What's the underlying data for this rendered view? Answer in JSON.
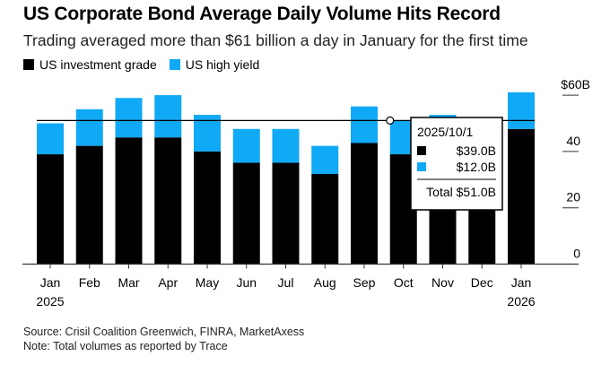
{
  "title": "US Corporate Bond Average Daily Volume Hits Record",
  "subtitle": "Trading averaged more than $61 billion a day in January for the first time",
  "source": "Source: Crisil Coalition Greenwich, FINRA, MarketAxess",
  "note": "Note: Total volumes as reported by Trace",
  "colors": {
    "investment_grade": "#000000",
    "high_yield": "#10a9f5"
  },
  "chart_data": {
    "type": "bar",
    "stacked": true,
    "categories": [
      "Jan",
      "Feb",
      "Mar",
      "Apr",
      "May",
      "Jun",
      "Jul",
      "Aug",
      "Sep",
      "Oct",
      "Nov",
      "Dec",
      "Jan"
    ],
    "year_labels": [
      "2025",
      "",
      "",
      "",
      "",
      "",
      "",
      "",
      "",
      "",
      "",
      "",
      "2026"
    ],
    "series": [
      {
        "name": "US investment grade",
        "values": [
          39,
          42,
          45,
          45,
          40,
          36,
          36,
          32,
          43,
          39,
          40,
          35,
          48
        ]
      },
      {
        "name": "US high yield",
        "values": [
          11,
          13,
          14,
          15,
          13,
          12,
          12,
          10,
          13,
          12,
          13,
          10,
          13
        ]
      }
    ],
    "ylim": [
      0,
      60
    ],
    "yticks": [
      "0",
      "20",
      "40",
      "$60B"
    ],
    "ytick_values": [
      0,
      20,
      40,
      60
    ],
    "legend": "top-left",
    "grid": false,
    "tooltip": {
      "category_index": 9,
      "date": "2025/10/1",
      "ig_value": "$39.0B",
      "hy_value": "$12.0B",
      "total": "Total $51.0B",
      "reference_value": 51
    }
  }
}
